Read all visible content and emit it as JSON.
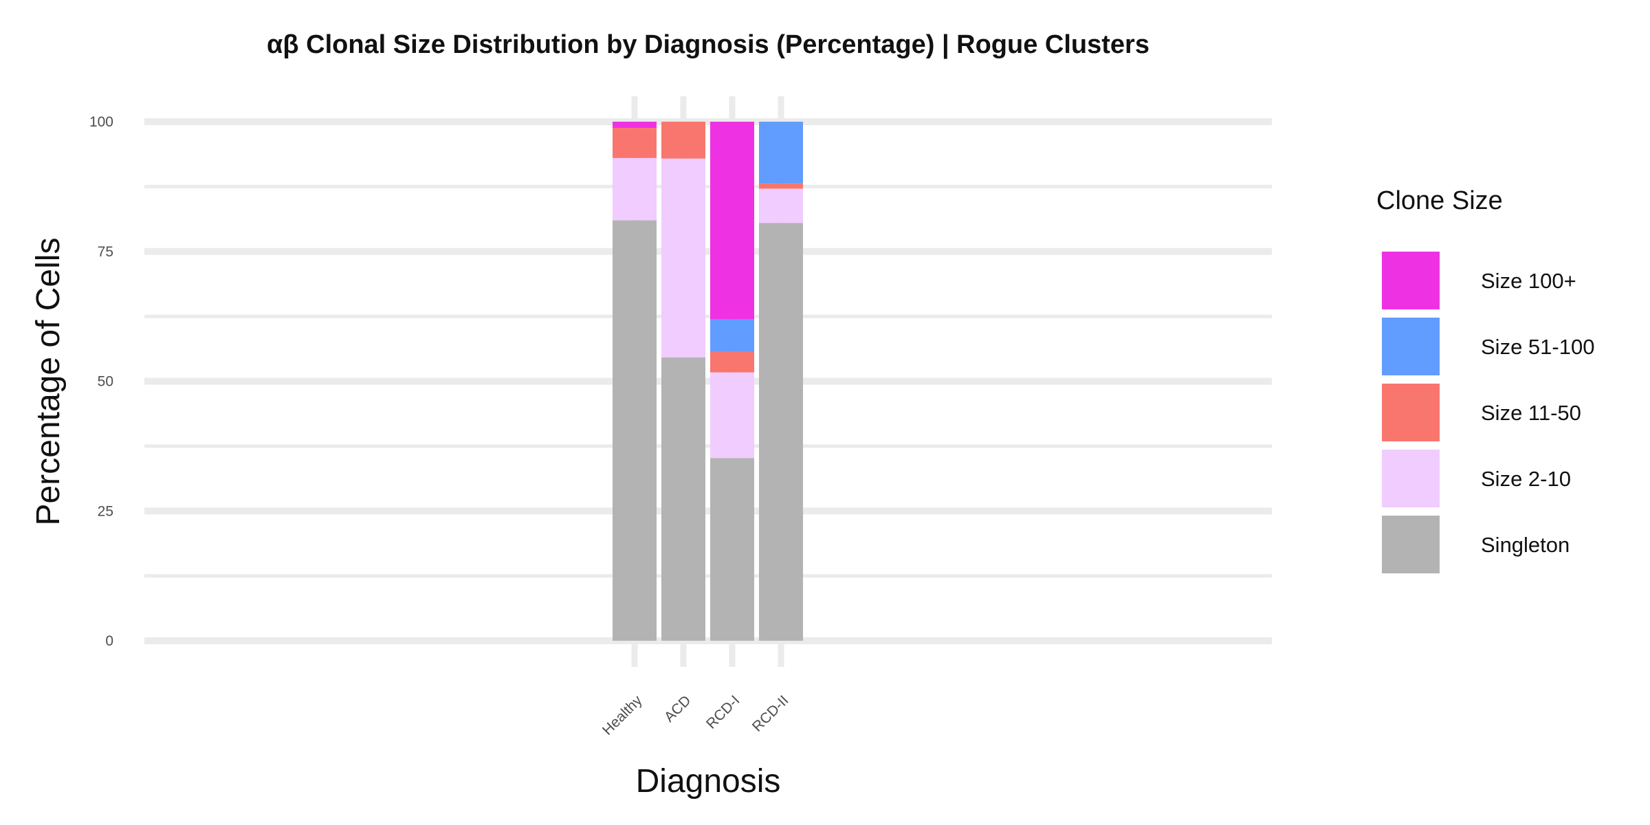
{
  "chart_data": {
    "type": "bar",
    "stacked": true,
    "title": "αβ Clonal Size Distribution by Diagnosis (Percentage) | Rogue Clusters",
    "xlabel": "Diagnosis",
    "ylabel": "Percentage of Cells",
    "ylim": [
      0,
      100
    ],
    "yticks": [
      0,
      25,
      50,
      75,
      100
    ],
    "categories": [
      "Healthy",
      "ACD",
      "RCD-I",
      "RCD-II"
    ],
    "grid": true,
    "legend_position": "right",
    "legend_title": "Clone Size",
    "series": [
      {
        "name": "Singleton",
        "color": "#b3b3b3",
        "values": [
          81.0,
          54.6,
          35.2,
          80.5
        ]
      },
      {
        "name": "Size 2-10",
        "color": "#f0ccff",
        "values": [
          12.0,
          38.3,
          16.5,
          6.6
        ]
      },
      {
        "name": "Size 11-50",
        "color": "#f8766d",
        "values": [
          5.8,
          7.1,
          4.0,
          1.0
        ]
      },
      {
        "name": "Size 51-100",
        "color": "#619cff",
        "values": [
          0.0,
          0.0,
          6.2,
          11.9
        ]
      },
      {
        "name": "Size 100+",
        "color": "#ee32e3",
        "values": [
          1.2,
          0.0,
          38.1,
          0.0
        ]
      }
    ],
    "legend_order": [
      "Size 100+",
      "Size 51-100",
      "Size 11-50",
      "Size 2-10",
      "Singleton"
    ]
  }
}
